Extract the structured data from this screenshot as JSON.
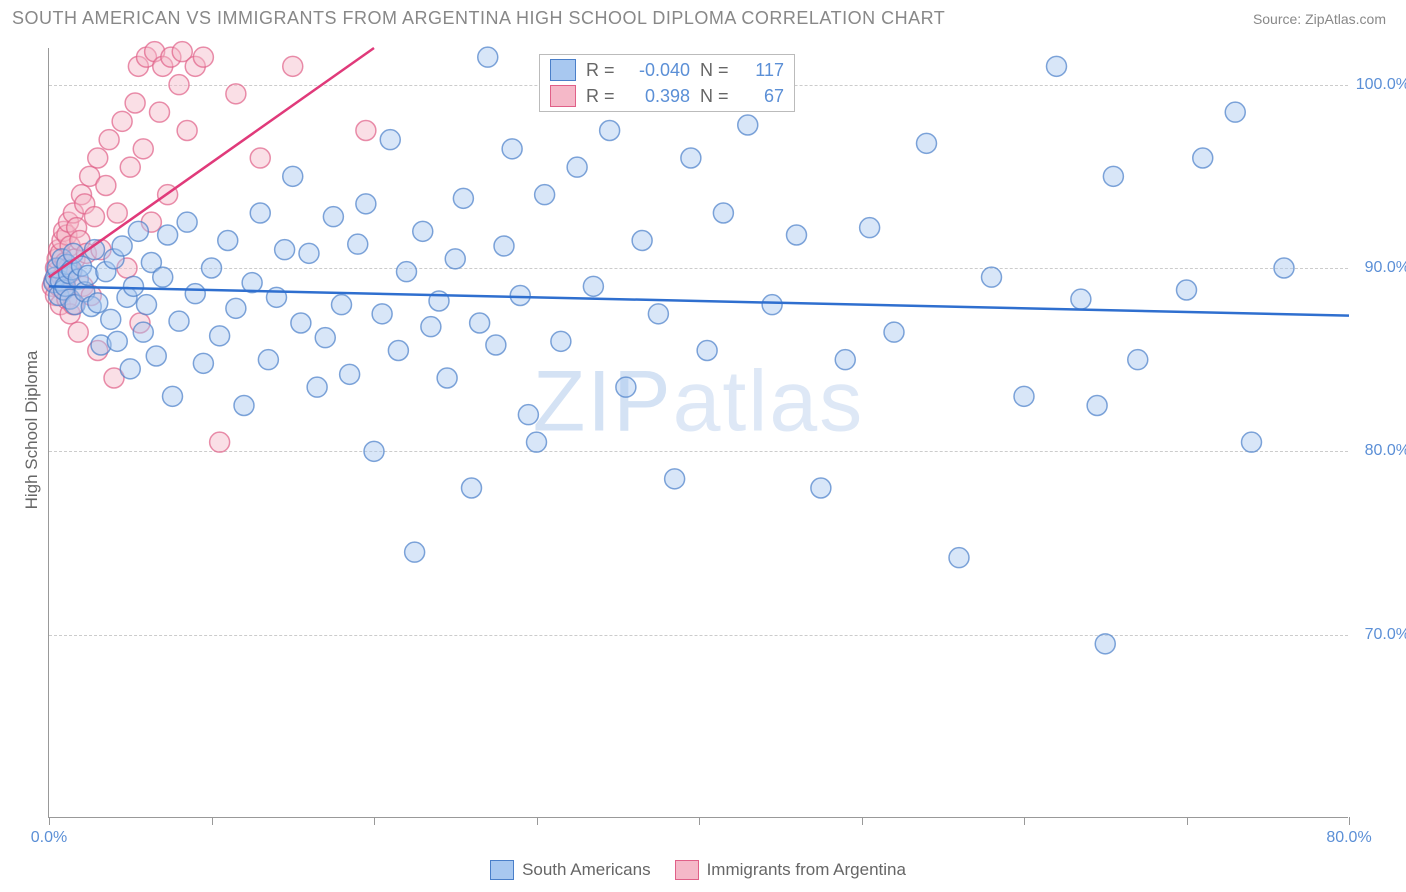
{
  "header": {
    "title": "SOUTH AMERICAN VS IMMIGRANTS FROM ARGENTINA HIGH SCHOOL DIPLOMA CORRELATION CHART",
    "source": "Source: ZipAtlas.com"
  },
  "chart": {
    "type": "scatter",
    "ylabel": "High School Diploma",
    "y_axis": {
      "min": 60,
      "max": 102,
      "ticks": [
        70,
        80,
        90,
        100
      ],
      "tick_labels": [
        "70.0%",
        "80.0%",
        "90.0%",
        "100.0%"
      ],
      "label_color": "#5b8fd6",
      "label_fontsize": 16
    },
    "x_axis": {
      "min": 0,
      "max": 80,
      "ticks": [
        0,
        10,
        20,
        30,
        40,
        50,
        60,
        70,
        80
      ],
      "tick_labels_visible": [
        "0.0%",
        "80.0%"
      ],
      "label_color": "#5b8fd6"
    },
    "grid_color": "#cccccc",
    "axis_color": "#999999",
    "background_color": "#ffffff",
    "marker_radius": 10,
    "marker_opacity": 0.45,
    "marker_stroke_opacity": 0.7,
    "series": {
      "south_americans": {
        "label": "South Americans",
        "fill_color": "#a8c8f0",
        "stroke_color": "#4a7fc9",
        "R": "-0.040",
        "N": "117",
        "trend": {
          "y_at_xmin": 89.0,
          "y_at_xmax": 87.4,
          "color": "#2f6fcf",
          "width": 2.5
        },
        "points": [
          [
            0.3,
            89.2
          ],
          [
            0.4,
            89.5
          ],
          [
            0.5,
            90.0
          ],
          [
            0.6,
            88.5
          ],
          [
            0.7,
            89.3
          ],
          [
            0.8,
            90.5
          ],
          [
            0.9,
            88.8
          ],
          [
            1.0,
            89.0
          ],
          [
            1.1,
            90.2
          ],
          [
            1.2,
            89.7
          ],
          [
            1.3,
            88.3
          ],
          [
            1.4,
            89.9
          ],
          [
            1.5,
            90.8
          ],
          [
            1.6,
            88.0
          ],
          [
            1.8,
            89.4
          ],
          [
            2.0,
            90.1
          ],
          [
            2.2,
            88.7
          ],
          [
            2.4,
            89.6
          ],
          [
            2.6,
            87.9
          ],
          [
            2.8,
            91.0
          ],
          [
            3.0,
            88.1
          ],
          [
            3.2,
            85.8
          ],
          [
            3.5,
            89.8
          ],
          [
            3.8,
            87.2
          ],
          [
            4.0,
            90.5
          ],
          [
            4.2,
            86.0
          ],
          [
            4.5,
            91.2
          ],
          [
            4.8,
            88.4
          ],
          [
            5.0,
            84.5
          ],
          [
            5.2,
            89.0
          ],
          [
            5.5,
            92.0
          ],
          [
            5.8,
            86.5
          ],
          [
            6.0,
            88.0
          ],
          [
            6.3,
            90.3
          ],
          [
            6.6,
            85.2
          ],
          [
            7.0,
            89.5
          ],
          [
            7.3,
            91.8
          ],
          [
            7.6,
            83.0
          ],
          [
            8.0,
            87.1
          ],
          [
            8.5,
            92.5
          ],
          [
            9.0,
            88.6
          ],
          [
            9.5,
            84.8
          ],
          [
            10.0,
            90.0
          ],
          [
            10.5,
            86.3
          ],
          [
            11.0,
            91.5
          ],
          [
            11.5,
            87.8
          ],
          [
            12.0,
            82.5
          ],
          [
            12.5,
            89.2
          ],
          [
            13.0,
            93.0
          ],
          [
            13.5,
            85.0
          ],
          [
            14.0,
            88.4
          ],
          [
            14.5,
            91.0
          ],
          [
            15.0,
            95.0
          ],
          [
            15.5,
            87.0
          ],
          [
            16.0,
            90.8
          ],
          [
            16.5,
            83.5
          ],
          [
            17.0,
            86.2
          ],
          [
            17.5,
            92.8
          ],
          [
            18.0,
            88.0
          ],
          [
            18.5,
            84.2
          ],
          [
            19.0,
            91.3
          ],
          [
            19.5,
            93.5
          ],
          [
            20.0,
            80.0
          ],
          [
            20.5,
            87.5
          ],
          [
            21.0,
            97.0
          ],
          [
            21.5,
            85.5
          ],
          [
            22.0,
            89.8
          ],
          [
            22.5,
            74.5
          ],
          [
            23.0,
            92.0
          ],
          [
            23.5,
            86.8
          ],
          [
            24.0,
            88.2
          ],
          [
            24.5,
            84.0
          ],
          [
            25.0,
            90.5
          ],
          [
            25.5,
            93.8
          ],
          [
            26.0,
            78.0
          ],
          [
            26.5,
            87.0
          ],
          [
            27.0,
            101.5
          ],
          [
            27.5,
            85.8
          ],
          [
            28.0,
            91.2
          ],
          [
            28.5,
            96.5
          ],
          [
            29.0,
            88.5
          ],
          [
            29.5,
            82.0
          ],
          [
            30.0,
            80.5
          ],
          [
            30.5,
            94.0
          ],
          [
            31.5,
            86.0
          ],
          [
            32.5,
            95.5
          ],
          [
            33.5,
            89.0
          ],
          [
            34.5,
            97.5
          ],
          [
            35.5,
            83.5
          ],
          [
            36.5,
            91.5
          ],
          [
            37.5,
            87.5
          ],
          [
            38.5,
            78.5
          ],
          [
            39.5,
            96.0
          ],
          [
            40.5,
            85.5
          ],
          [
            41.5,
            93.0
          ],
          [
            43.0,
            97.8
          ],
          [
            44.5,
            88.0
          ],
          [
            46.0,
            91.8
          ],
          [
            47.5,
            78.0
          ],
          [
            49.0,
            85.0
          ],
          [
            50.5,
            92.2
          ],
          [
            52.0,
            86.5
          ],
          [
            54.0,
            96.8
          ],
          [
            56.0,
            74.2
          ],
          [
            58.0,
            89.5
          ],
          [
            60.0,
            83.0
          ],
          [
            62.0,
            101.0
          ],
          [
            63.5,
            88.3
          ],
          [
            64.5,
            82.5
          ],
          [
            65.0,
            69.5
          ],
          [
            65.5,
            95.0
          ],
          [
            67.0,
            85.0
          ],
          [
            70.0,
            88.8
          ],
          [
            71.0,
            96.0
          ],
          [
            73.0,
            98.5
          ],
          [
            74.0,
            80.5
          ],
          [
            76.0,
            90.0
          ]
        ]
      },
      "immigrants_argentina": {
        "label": "Immigrants from Argentina",
        "fill_color": "#f5b8c8",
        "stroke_color": "#e06088",
        "R": "0.398",
        "N": "67",
        "trend": {
          "y_at_xmin": 89.5,
          "y_at_x20": 102.0,
          "color": "#e03a7a",
          "width": 2.5
        },
        "points": [
          [
            0.2,
            89.0
          ],
          [
            0.3,
            89.3
          ],
          [
            0.4,
            90.0
          ],
          [
            0.4,
            88.5
          ],
          [
            0.5,
            89.8
          ],
          [
            0.5,
            90.5
          ],
          [
            0.6,
            89.0
          ],
          [
            0.6,
            91.0
          ],
          [
            0.7,
            88.0
          ],
          [
            0.7,
            90.8
          ],
          [
            0.8,
            89.5
          ],
          [
            0.8,
            91.5
          ],
          [
            0.9,
            88.8
          ],
          [
            0.9,
            92.0
          ],
          [
            1.0,
            89.2
          ],
          [
            1.0,
            90.3
          ],
          [
            1.1,
            91.8
          ],
          [
            1.1,
            88.3
          ],
          [
            1.2,
            90.0
          ],
          [
            1.2,
            92.5
          ],
          [
            1.3,
            87.5
          ],
          [
            1.3,
            91.2
          ],
          [
            1.4,
            89.8
          ],
          [
            1.5,
            93.0
          ],
          [
            1.5,
            88.0
          ],
          [
            1.6,
            90.5
          ],
          [
            1.7,
            92.2
          ],
          [
            1.8,
            86.5
          ],
          [
            1.9,
            91.5
          ],
          [
            2.0,
            94.0
          ],
          [
            2.1,
            89.0
          ],
          [
            2.2,
            93.5
          ],
          [
            2.3,
            90.8
          ],
          [
            2.5,
            95.0
          ],
          [
            2.6,
            88.5
          ],
          [
            2.8,
            92.8
          ],
          [
            3.0,
            96.0
          ],
          [
            3.0,
            85.5
          ],
          [
            3.2,
            91.0
          ],
          [
            3.5,
            94.5
          ],
          [
            3.7,
            97.0
          ],
          [
            4.0,
            84.0
          ],
          [
            4.2,
            93.0
          ],
          [
            4.5,
            98.0
          ],
          [
            4.8,
            90.0
          ],
          [
            5.0,
            95.5
          ],
          [
            5.3,
            99.0
          ],
          [
            5.5,
            101.0
          ],
          [
            5.6,
            87.0
          ],
          [
            5.8,
            96.5
          ],
          [
            6.0,
            101.5
          ],
          [
            6.3,
            92.5
          ],
          [
            6.5,
            101.8
          ],
          [
            6.8,
            98.5
          ],
          [
            7.0,
            101.0
          ],
          [
            7.3,
            94.0
          ],
          [
            7.5,
            101.5
          ],
          [
            8.0,
            100.0
          ],
          [
            8.2,
            101.8
          ],
          [
            8.5,
            97.5
          ],
          [
            9.0,
            101.0
          ],
          [
            9.5,
            101.5
          ],
          [
            10.5,
            80.5
          ],
          [
            11.5,
            99.5
          ],
          [
            13.0,
            96.0
          ],
          [
            15.0,
            101.0
          ],
          [
            19.5,
            97.5
          ]
        ]
      }
    },
    "stats_box": {
      "rows": [
        {
          "swatch_fill": "#a8c8f0",
          "swatch_stroke": "#4a7fc9",
          "R": "-0.040",
          "N": "117"
        },
        {
          "swatch_fill": "#f5b8c8",
          "swatch_stroke": "#e06088",
          "R": "0.398",
          "N": "67"
        }
      ],
      "col_labels": {
        "R": "R =",
        "N": "N ="
      }
    },
    "bottom_legend": [
      {
        "swatch_fill": "#a8c8f0",
        "swatch_stroke": "#4a7fc9",
        "label": "South Americans"
      },
      {
        "swatch_fill": "#f5b8c8",
        "swatch_stroke": "#e06088",
        "label": "Immigrants from Argentina"
      }
    ],
    "watermark": "ZIPatlas"
  }
}
